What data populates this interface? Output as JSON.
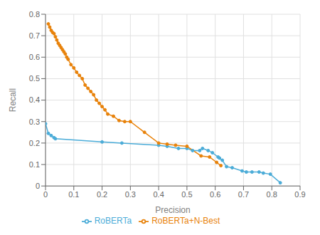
{
  "chart_data": {
    "type": "line",
    "xlabel": "Precision",
    "ylabel": "Recall",
    "series": [
      {
        "name": "RoBERTa",
        "color": "#4BACD8",
        "marker": "circle",
        "x": [
          0.0,
          0.01,
          0.02,
          0.03,
          0.035,
          0.2,
          0.27,
          0.4,
          0.43,
          0.47,
          0.5,
          0.52,
          0.545,
          0.555,
          0.575,
          0.59,
          0.61,
          0.615,
          0.625,
          0.64,
          0.66,
          0.695,
          0.71,
          0.73,
          0.755,
          0.77,
          0.795,
          0.83
        ],
        "values": [
          0.29,
          0.245,
          0.235,
          0.225,
          0.22,
          0.205,
          0.2,
          0.19,
          0.185,
          0.175,
          0.175,
          0.165,
          0.165,
          0.175,
          0.165,
          0.155,
          0.135,
          0.13,
          0.12,
          0.09,
          0.085,
          0.07,
          0.065,
          0.065,
          0.065,
          0.06,
          0.055,
          0.015
        ]
      },
      {
        "name": "RoBERTa+N-Best",
        "color": "#E8820A",
        "marker": "circle",
        "x": [
          0.01,
          0.015,
          0.02,
          0.025,
          0.03,
          0.035,
          0.04,
          0.045,
          0.05,
          0.055,
          0.06,
          0.065,
          0.07,
          0.075,
          0.08,
          0.09,
          0.1,
          0.11,
          0.12,
          0.13,
          0.14,
          0.15,
          0.16,
          0.17,
          0.18,
          0.19,
          0.2,
          0.21,
          0.22,
          0.24,
          0.26,
          0.28,
          0.3,
          0.35,
          0.4,
          0.43,
          0.46,
          0.5,
          0.55,
          0.58,
          0.605,
          0.62
        ],
        "values": [
          0.755,
          0.74,
          0.725,
          0.715,
          0.71,
          0.695,
          0.68,
          0.665,
          0.655,
          0.645,
          0.635,
          0.625,
          0.615,
          0.6,
          0.59,
          0.565,
          0.55,
          0.53,
          0.515,
          0.5,
          0.47,
          0.455,
          0.44,
          0.425,
          0.4,
          0.385,
          0.37,
          0.355,
          0.335,
          0.325,
          0.305,
          0.3,
          0.3,
          0.25,
          0.2,
          0.195,
          0.19,
          0.185,
          0.14,
          0.135,
          0.11,
          0.095
        ]
      }
    ],
    "xlim": [
      0,
      0.9
    ],
    "ylim": [
      0,
      0.8
    ],
    "xticks": [
      0,
      0.1,
      0.2,
      0.3,
      0.4,
      0.5,
      0.6,
      0.7,
      0.8,
      0.9
    ],
    "yticks": [
      0,
      0.1,
      0.2,
      0.3,
      0.4,
      0.5,
      0.6,
      0.7,
      0.8
    ],
    "grid": true,
    "legend": "bottom"
  }
}
